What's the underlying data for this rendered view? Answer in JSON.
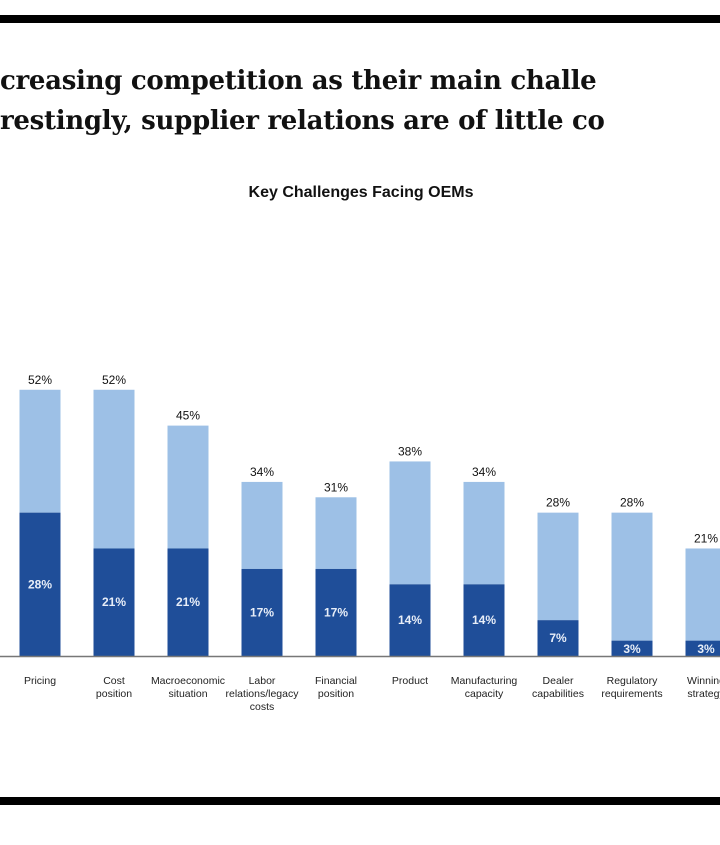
{
  "page": {
    "heading_line1": "creasing competition as their main challe",
    "heading_line2": "restingly, supplier relations are of little co"
  },
  "chart_data": {
    "type": "bar",
    "stacked": true,
    "title": "Key Challenges Facing OEMs",
    "xlabel": "",
    "ylabel": "",
    "ylim": [
      0,
      60
    ],
    "grid": false,
    "categories": [
      [
        "Pricing"
      ],
      [
        "Cost",
        "position"
      ],
      [
        "Macroeconomic",
        "situation"
      ],
      [
        "Labor",
        "relations/legacy",
        "costs"
      ],
      [
        "Financial",
        "position"
      ],
      [
        "Product"
      ],
      [
        "Manufacturing",
        "capacity"
      ],
      [
        "Dealer",
        "capabilities"
      ],
      [
        "Regulatory",
        "requirements"
      ],
      [
        "Winning",
        "strategy"
      ]
    ],
    "totals": [
      52,
      52,
      45,
      34,
      31,
      38,
      34,
      28,
      28,
      21
    ],
    "inner_values": [
      28,
      21,
      21,
      17,
      17,
      14,
      14,
      7,
      3,
      3
    ],
    "total_labels": [
      "52%",
      "52%",
      "45%",
      "34%",
      "31%",
      "38%",
      "34%",
      "28%",
      "28%",
      "21%"
    ],
    "inner_labels": [
      "28%",
      "21%",
      "21%",
      "17%",
      "17%",
      "14%",
      "14%",
      "7%",
      "3%",
      "3%"
    ],
    "colors": {
      "dark": "#1f4e99",
      "light": "#9dc0e6",
      "axis": "#777777"
    }
  }
}
